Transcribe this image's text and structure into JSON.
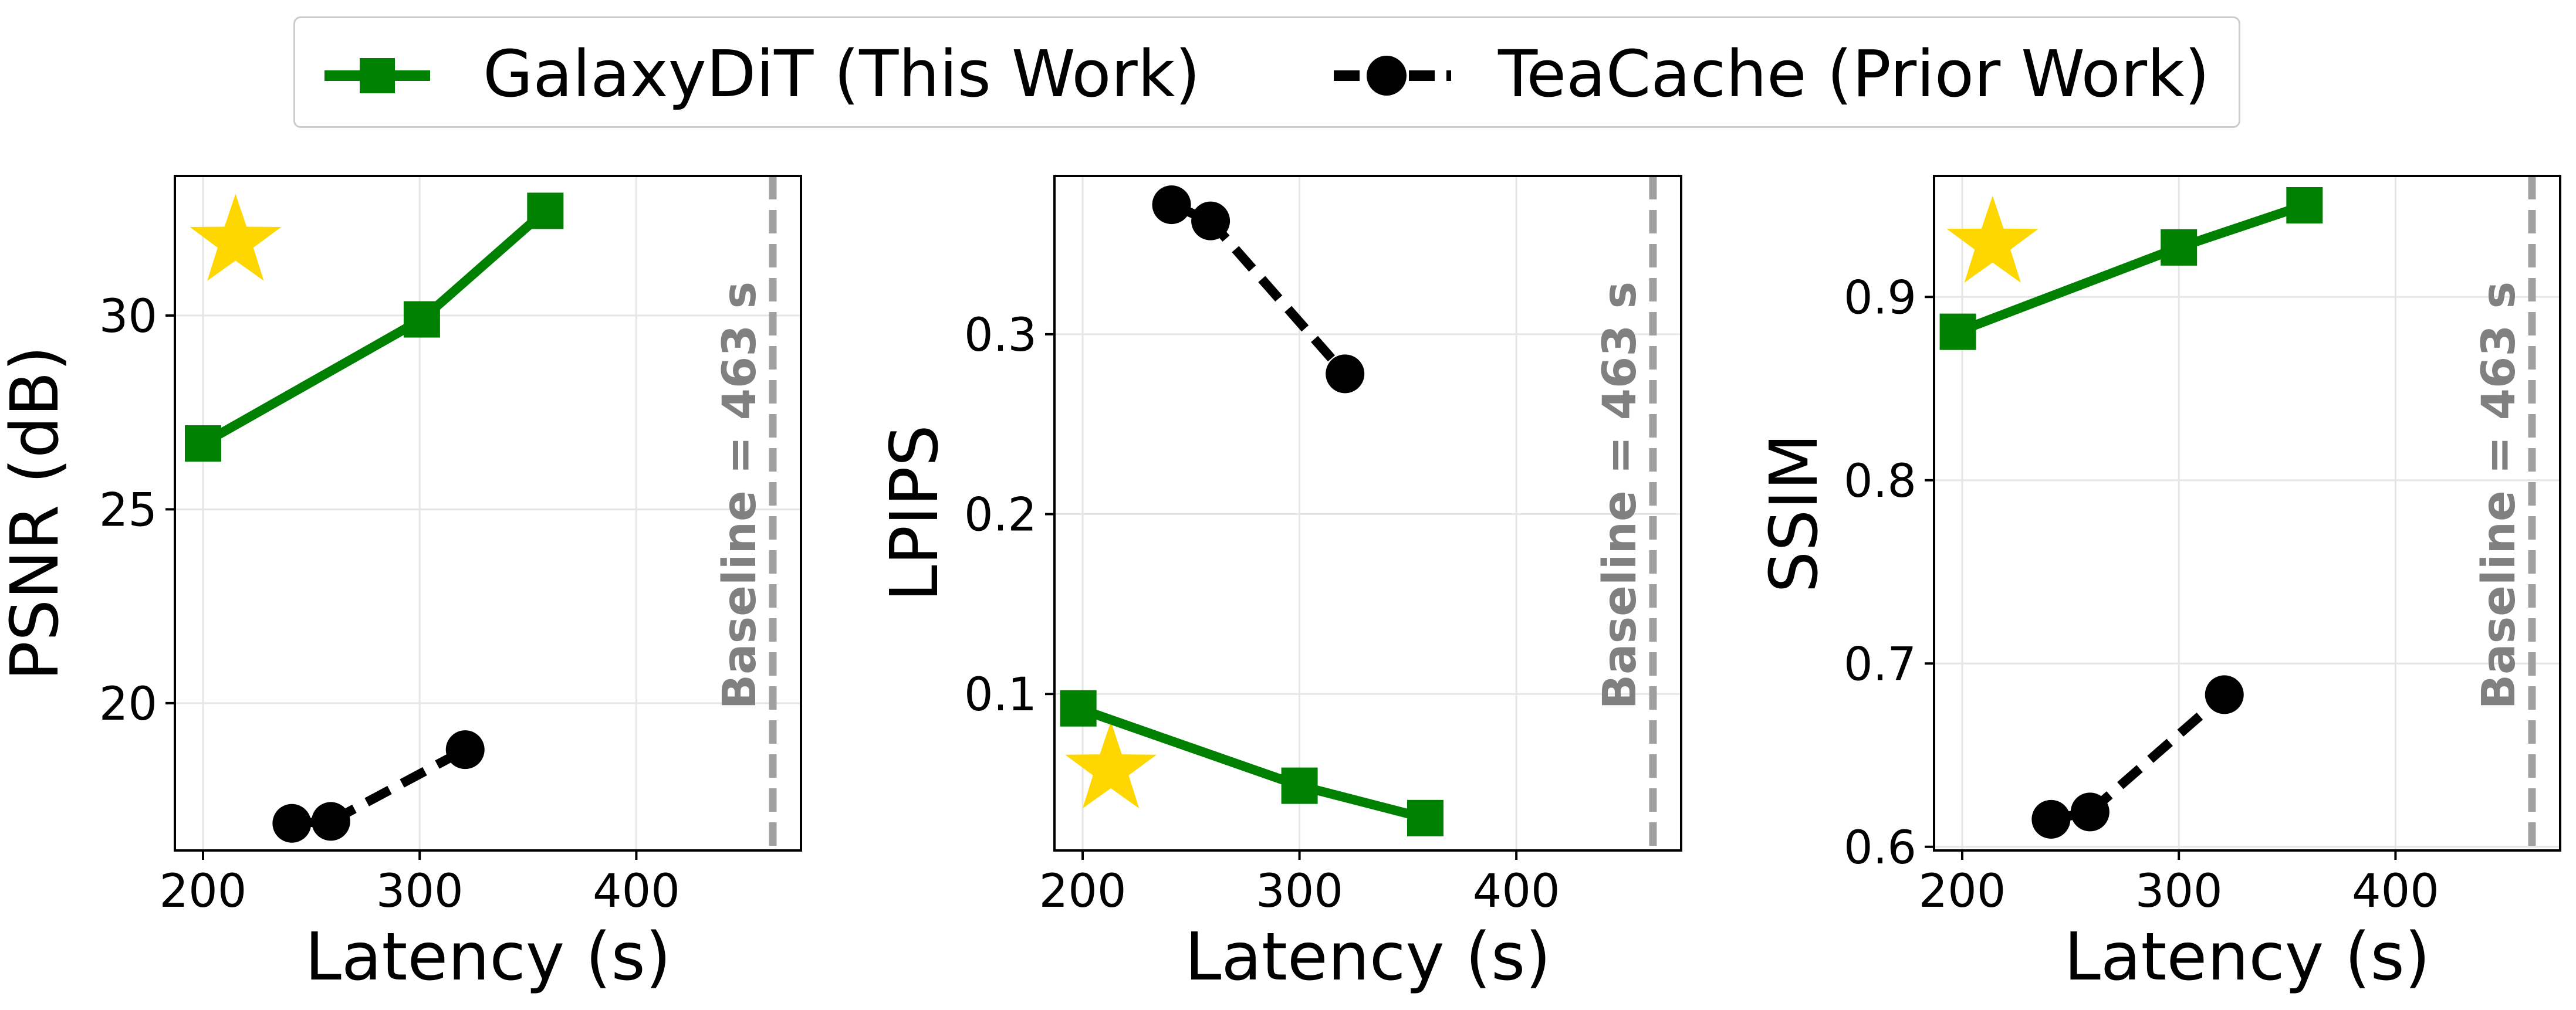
{
  "legend": {
    "galaxy_label": "GalaxyDiT (This Work)",
    "teacache_label": "TeaCache (Prior Work)"
  },
  "colors": {
    "galaxy": "#008000",
    "teacache": "#000000",
    "star": "#FFD700",
    "baseline": "#A0A0A0",
    "grid": "#E6E6E6"
  },
  "chart_data": [
    {
      "type": "line",
      "title": "",
      "xlabel": "Latency (s)",
      "ylabel": "PSNR (dB)",
      "xlim": [
        187,
        476
      ],
      "ylim": [
        16.2,
        33.6
      ],
      "xticks": [
        200,
        300,
        400
      ],
      "yticks": [
        20,
        25,
        30
      ],
      "ytick_labels": [
        "20",
        "25",
        "30"
      ],
      "series": [
        {
          "name": "GalaxyDiT (This Work)",
          "marker": "square",
          "style": "solid",
          "x": [
            200,
            301,
            358
          ],
          "y": [
            26.7,
            29.9,
            32.7
          ]
        },
        {
          "name": "TeaCache (Prior Work)",
          "marker": "circle",
          "style": "dashed",
          "x": [
            241,
            259,
            321
          ],
          "y": [
            16.9,
            16.95,
            18.8
          ]
        }
      ],
      "star": {
        "x": 215,
        "y": 31.9
      },
      "baseline": {
        "x": 463,
        "label": "Baseline = 463 s"
      },
      "grid": true
    },
    {
      "type": "line",
      "title": "",
      "xlabel": "Latency (s)",
      "ylabel": "LPIPS",
      "xlim": [
        187,
        476
      ],
      "ylim": [
        0.013,
        0.388
      ],
      "xticks": [
        200,
        300,
        400
      ],
      "yticks": [
        0.1,
        0.2,
        0.3
      ],
      "ytick_labels": [
        "0.1",
        "0.2",
        "0.3"
      ],
      "series": [
        {
          "name": "GalaxyDiT (This Work)",
          "marker": "square",
          "style": "solid",
          "x": [
            198,
            300,
            358
          ],
          "y": [
            0.092,
            0.049,
            0.031
          ]
        },
        {
          "name": "TeaCache (Prior Work)",
          "marker": "circle",
          "style": "dashed",
          "x": [
            241,
            259,
            321
          ],
          "y": [
            0.372,
            0.363,
            0.278
          ]
        }
      ],
      "star": {
        "x": 213,
        "y": 0.058
      },
      "baseline": {
        "x": 463,
        "label": "Baseline = 463 s"
      },
      "grid": true
    },
    {
      "type": "line",
      "title": "",
      "xlabel": "Latency (s)",
      "ylabel": "SSIM",
      "xlim": [
        187,
        476
      ],
      "ylim": [
        0.598,
        0.966
      ],
      "xticks": [
        200,
        300,
        400
      ],
      "yticks": [
        0.6,
        0.7,
        0.8,
        0.9
      ],
      "ytick_labels": [
        "0.6",
        "0.7",
        "0.8",
        "0.9"
      ],
      "series": [
        {
          "name": "GalaxyDiT (This Work)",
          "marker": "square",
          "style": "solid",
          "x": [
            198,
            300,
            358
          ],
          "y": [
            0.881,
            0.927,
            0.95
          ]
        },
        {
          "name": "TeaCache (Prior Work)",
          "marker": "circle",
          "style": "dashed",
          "x": [
            241,
            259,
            321
          ],
          "y": [
            0.615,
            0.619,
            0.683
          ]
        }
      ],
      "star": {
        "x": 214,
        "y": 0.929
      },
      "baseline": {
        "x": 463,
        "label": "Baseline = 463 s"
      },
      "grid": true
    }
  ]
}
